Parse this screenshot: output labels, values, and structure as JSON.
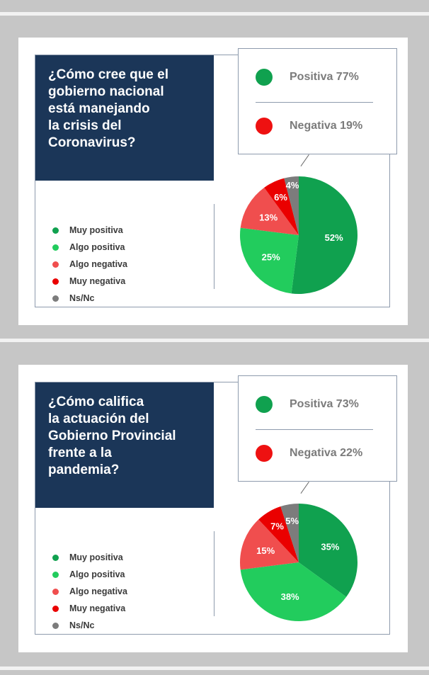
{
  "colors": {
    "muy_positiva": "#10a14f",
    "algo_positiva": "#22cc5d",
    "algo_negativa": "#f04e4e",
    "muy_negativa": "#ea0000",
    "ns_nc": "#7c7c7c",
    "positiva": "#10a14f",
    "negativa": "#ee1111"
  },
  "legend": [
    "Muy positiva",
    "Algo positiva",
    "Algo negativa",
    "Muy negativa",
    "Ns/Nc"
  ],
  "panels": [
    {
      "question_lines": [
        "¿Cómo cree que el",
        "gobierno nacional",
        "está manejando",
        "la crisis del",
        "Coronavirus?"
      ],
      "summary_positive": "Positiva 77%",
      "summary_negative": "Negativa 19%"
    },
    {
      "question_lines": [
        "¿Cómo califica",
        "la actuación del",
        "Gobierno Provincial",
        "frente a la",
        "pandemia?"
      ],
      "summary_positive": "Positiva 73%",
      "summary_negative": "Negativa 22%"
    }
  ],
  "chart_data": [
    {
      "type": "pie",
      "title": "¿Cómo cree que el gobierno nacional está manejando la crisis del Coronavirus?",
      "categories": [
        "Muy positiva",
        "Algo positiva",
        "Algo negativa",
        "Muy negativa",
        "Ns/Nc"
      ],
      "values": [
        52,
        25,
        13,
        6,
        4
      ],
      "labels": [
        "52%",
        "25%",
        "13%",
        "6%",
        "4%"
      ],
      "summary": {
        "Positiva": 77,
        "Negativa": 19
      },
      "legend_position": "left"
    },
    {
      "type": "pie",
      "title": "¿Cómo califica la actuación del Gobierno Provincial frente a la pandemia?",
      "categories": [
        "Muy positiva",
        "Algo positiva",
        "Algo negativa",
        "Muy negativa",
        "Ns/Nc"
      ],
      "values": [
        35,
        38,
        15,
        7,
        5
      ],
      "labels": [
        "35%",
        "38%",
        "15%",
        "7%",
        "5%"
      ],
      "summary": {
        "Positiva": 73,
        "Negativa": 22
      },
      "legend_position": "left"
    }
  ]
}
